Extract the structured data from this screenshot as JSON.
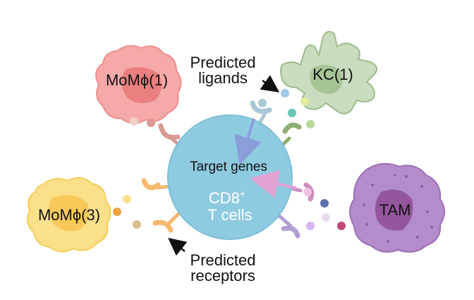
{
  "labels": {
    "momphi1": "MoMϕ(1)",
    "kc1": "KC(1)",
    "momphi3": "MoMϕ(3)",
    "tam": "TAM",
    "predicted_ligands_line1": "Predicted",
    "predicted_ligands_line2": "ligands",
    "predicted_receptors_line1": "Predicted",
    "predicted_receptors_line2": "receptors",
    "target_genes": "Target genes",
    "cd8_line1": "CD8",
    "cd8_sup": "+",
    "cd8_line2": "T cells"
  },
  "colors": {
    "momphi1_fill": "#f5a9a9",
    "momphi1_nucleus": "#ea7f80",
    "kc1_fill": "#c9dcbf",
    "kc1_nucleus": "#a7c495",
    "momphi3_fill": "#fbe08a",
    "momphi3_nucleus": "#f8c95a",
    "tam_fill": "#b48ccb",
    "tam_nucleus": "#93569d",
    "cd8_fill": "#8fcbe0",
    "cd8_stroke": "#7cc0d8",
    "blue_arrow": "#8a9ed8",
    "pink_arrow": "#e2a2d4"
  }
}
